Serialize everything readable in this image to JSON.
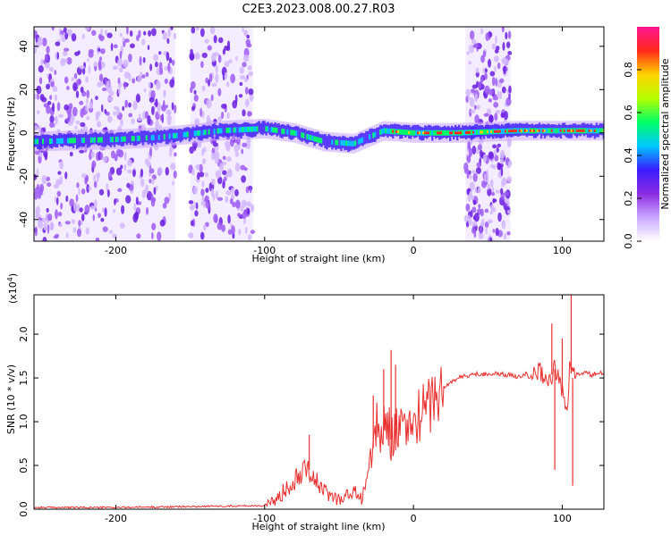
{
  "title": "C2E3.2023.008.00.27.R03",
  "chart_data": [
    {
      "type": "heatmap",
      "xlabel": "Height of straight line (km)",
      "ylabel": "Frequency (Hz)",
      "xlim": [
        -255,
        128
      ],
      "ylim": [
        -50,
        49
      ],
      "xticks": [
        -200,
        -100,
        0,
        100
      ],
      "yticks": [
        -40,
        -20,
        0,
        20,
        40
      ],
      "colorbar": {
        "label": "Normalized spectral amplitude",
        "range": [
          0.0,
          1.0
        ],
        "ticks": [
          "0.0",
          "0.2",
          "0.4",
          "0.6",
          "0.8"
        ],
        "colormap": [
          "#ffffff",
          "#c9a8ff",
          "#8b2be2",
          "#3a1cff",
          "#00c8ff",
          "#00ff66",
          "#b8ff00",
          "#ffd200",
          "#ff2a1a",
          "#ff1493"
        ]
      },
      "signal_track": [
        {
          "x": -255,
          "y": -4
        },
        {
          "x": -200,
          "y": -3
        },
        {
          "x": -170,
          "y": -2
        },
        {
          "x": -130,
          "y": 1
        },
        {
          "x": -100,
          "y": 2
        },
        {
          "x": -80,
          "y": 0
        },
        {
          "x": -60,
          "y": -4
        },
        {
          "x": -40,
          "y": -5
        },
        {
          "x": -20,
          "y": 1
        },
        {
          "x": 0,
          "y": 0
        },
        {
          "x": 30,
          "y": 0
        },
        {
          "x": 70,
          "y": 1
        },
        {
          "x": 100,
          "y": 1
        },
        {
          "x": 128,
          "y": 1
        }
      ],
      "noise_regions": [
        {
          "x0": -255,
          "x1": -160
        },
        {
          "x0": -150,
          "x1": -108
        },
        {
          "x0": 35,
          "x1": 65
        }
      ]
    },
    {
      "type": "line",
      "xlabel": "Height of straight line (km)",
      "ylabel": "SNR (10 * v/v)",
      "exponent_label": "(x10",
      "exponent_sup": "4",
      "exponent_close": ")",
      "xlim": [
        -255,
        128
      ],
      "ylim": [
        0.0,
        2.45
      ],
      "xticks": [
        -200,
        -100,
        0,
        100
      ],
      "yticks": [
        "0.0",
        "0.5",
        "1.0",
        "1.5",
        "2.0"
      ],
      "series": [
        {
          "color": "#e8312f",
          "x": [
            -255,
            -200,
            -150,
            -110,
            -100,
            -95,
            -90,
            -85,
            -80,
            -75,
            -72,
            -70,
            -65,
            -60,
            -55,
            -50,
            -45,
            -40,
            -35,
            -30,
            -27,
            -25,
            -22,
            -20,
            -17,
            -15,
            -12,
            -10,
            -7,
            -5,
            -2,
            0,
            3,
            5,
            8,
            10,
            15,
            20,
            25,
            30,
            35,
            40,
            50,
            60,
            70,
            75,
            80,
            85,
            90,
            95,
            100,
            103,
            105,
            107,
            110,
            115,
            120,
            128
          ],
          "y": [
            0.02,
            0.02,
            0.03,
            0.04,
            0.04,
            0.07,
            0.15,
            0.25,
            0.35,
            0.45,
            0.55,
            0.45,
            0.3,
            0.2,
            0.15,
            0.12,
            0.15,
            0.2,
            0.12,
            0.45,
            0.7,
            0.95,
            0.85,
            0.9,
            1.05,
            0.8,
            0.95,
            0.85,
            0.95,
            0.9,
            0.95,
            1.0,
            1.05,
            1.1,
            1.15,
            1.2,
            1.3,
            1.38,
            1.45,
            1.5,
            1.52,
            1.54,
            1.55,
            1.54,
            1.52,
            1.55,
            1.5,
            1.6,
            1.45,
            1.6,
            1.35,
            1.1,
            1.6,
            1.5,
            1.55,
            1.55,
            1.54,
            1.55
          ]
        }
      ],
      "spikes": [
        {
          "x": -70,
          "y": 0.85
        },
        {
          "x": -27,
          "y": 1.3
        },
        {
          "x": -20,
          "y": 1.6
        },
        {
          "x": -15,
          "y": 1.82
        },
        {
          "x": -12,
          "y": 1.65
        },
        {
          "x": 93,
          "y": 2.12
        },
        {
          "x": 95,
          "y": 0.45
        },
        {
          "x": 100,
          "y": 1.95
        },
        {
          "x": 106,
          "y": 2.45
        },
        {
          "x": 107,
          "y": 0.27
        }
      ]
    }
  ]
}
